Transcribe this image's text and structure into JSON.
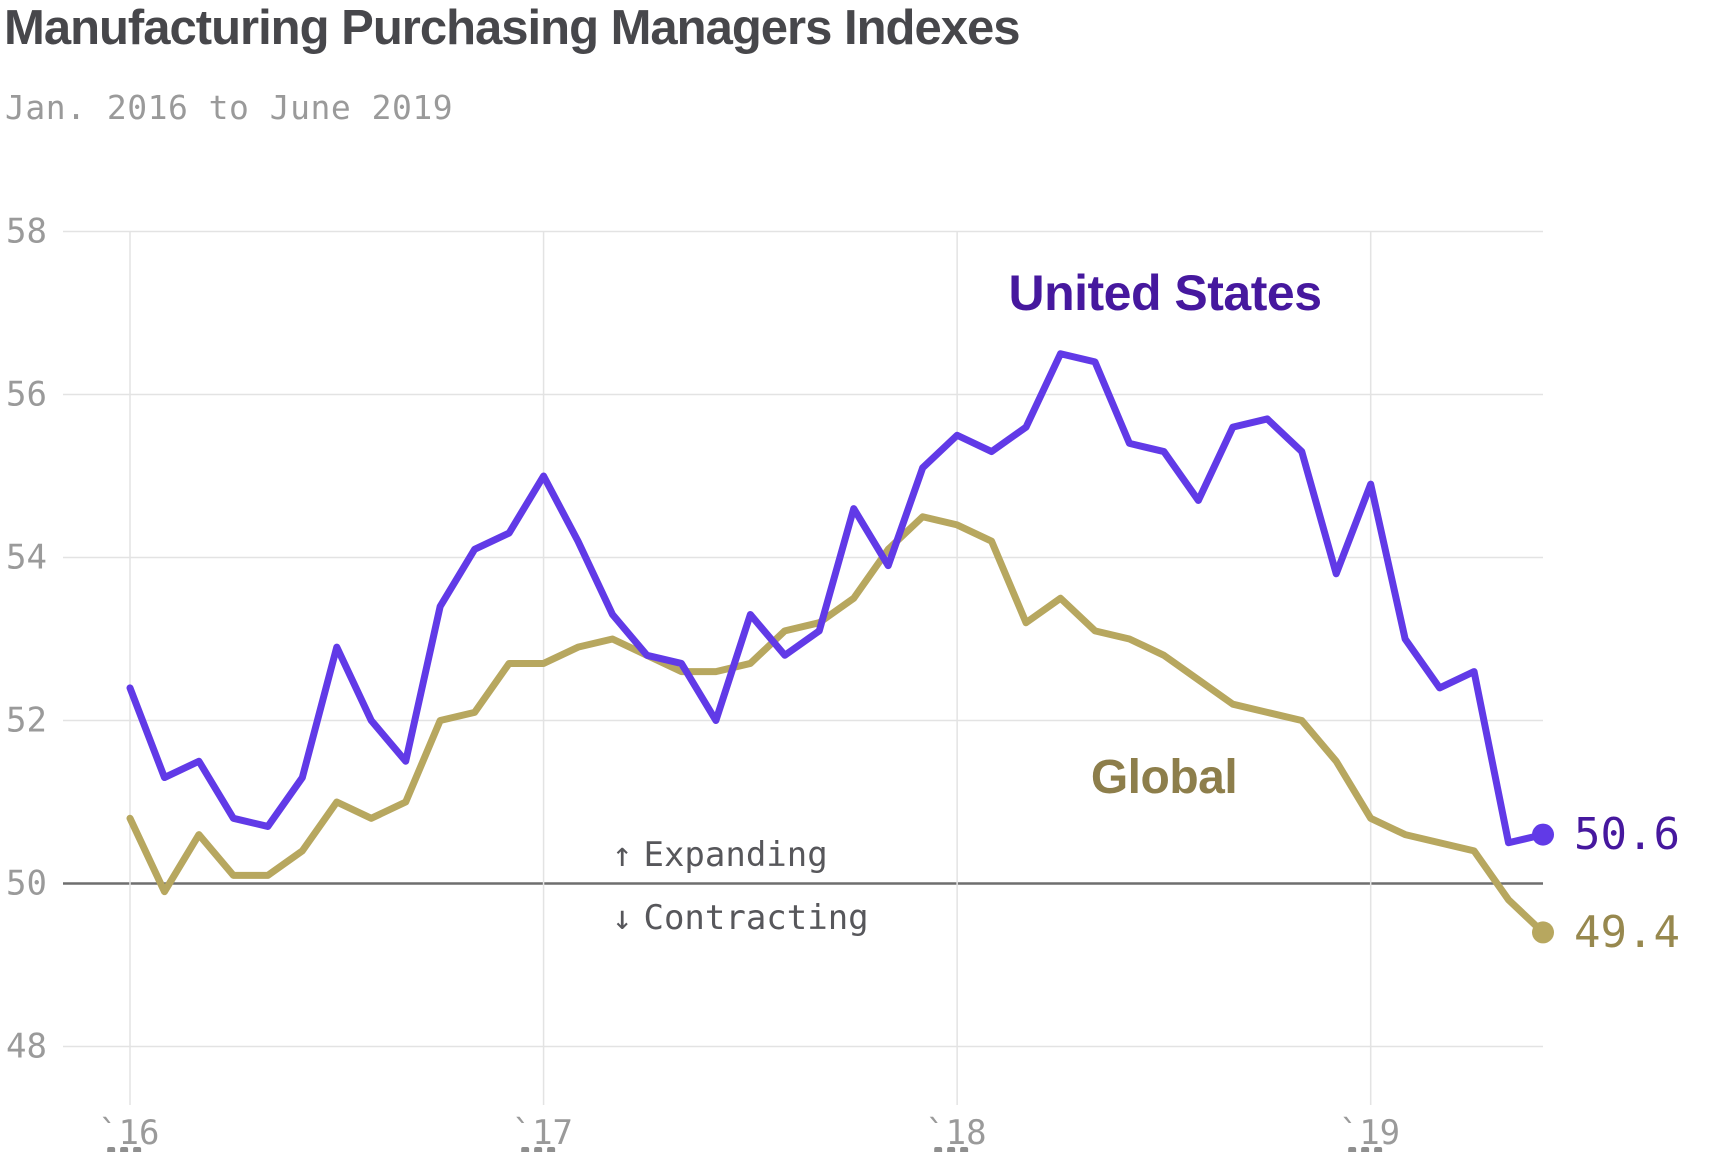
{
  "title": "Manufacturing Purchasing Managers Indexes",
  "subtitle": "Jan. 2016 to June 2019",
  "annotations": {
    "expanding_arrow": "↑",
    "expanding_label": "Expanding",
    "contracting_arrow": "↓",
    "contracting_label": "Contracting"
  },
  "colors": {
    "background": "#ffffff",
    "title": "#47474b",
    "muted": "#9a9a9a",
    "annotation": "#57575b",
    "grid": "#e3e3e3",
    "baseline": "#6e6e6e",
    "us_line": "#613ae7",
    "us_label": "#46189e",
    "global_line": "#b7a75f",
    "global_label": "#8d7e4b",
    "global_value_label": "#97884e"
  },
  "chart_data": {
    "type": "line",
    "title": "Manufacturing Purchasing Managers Indexes",
    "subtitle": "Jan. 2016 to June 2019",
    "x_unit": "month",
    "x_start": "Jan 2016",
    "x_end": "June 2019",
    "x_tick_labels": [
      "`16",
      "`17",
      "`18",
      "`19"
    ],
    "y_ticks": [
      58,
      56,
      54,
      52,
      50,
      48
    ],
    "ylim": [
      48,
      58
    ],
    "baseline_value": 50,
    "baseline_above_label": "Expanding",
    "baseline_below_label": "Contracting",
    "grid": true,
    "legend_position": "inline-labels",
    "series": [
      {
        "name": "United States",
        "end_label": "50.6",
        "values": [
          52.4,
          51.3,
          51.5,
          50.8,
          50.7,
          51.3,
          52.9,
          52.0,
          51.5,
          53.4,
          54.1,
          54.3,
          55.0,
          54.2,
          53.3,
          52.8,
          52.7,
          52.0,
          53.3,
          52.8,
          53.1,
          54.6,
          53.9,
          55.1,
          55.5,
          55.3,
          55.6,
          56.5,
          56.4,
          55.4,
          55.3,
          54.7,
          55.6,
          55.7,
          55.3,
          53.8,
          54.9,
          53.0,
          52.4,
          52.6,
          50.5,
          50.6
        ]
      },
      {
        "name": "Global",
        "end_label": "49.4",
        "values": [
          50.8,
          49.9,
          50.6,
          50.1,
          50.1,
          50.4,
          51.0,
          50.8,
          51.0,
          52.0,
          52.1,
          52.7,
          52.7,
          52.9,
          53.0,
          52.8,
          52.6,
          52.6,
          52.7,
          53.1,
          53.2,
          53.5,
          54.1,
          54.5,
          54.4,
          54.2,
          53.2,
          53.5,
          53.1,
          53.0,
          52.8,
          52.5,
          52.2,
          52.1,
          52.0,
          51.5,
          50.8,
          50.6,
          50.5,
          50.4,
          49.8,
          49.4
        ]
      }
    ]
  }
}
